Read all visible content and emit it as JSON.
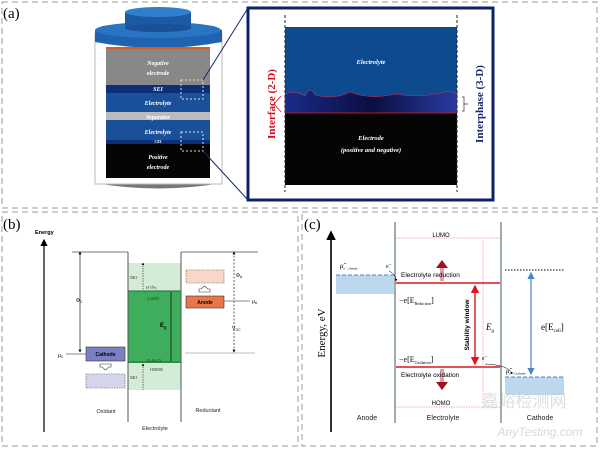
{
  "panel_a": {
    "label": "(a)",
    "battery_layers": {
      "negative_electrode_1": "Negative",
      "negative_electrode_2": "electrode",
      "sei": "SEI",
      "electrolyte_top": "Electrolyte",
      "separator": "Separator",
      "electrolyte_bottom": "Electrolyte",
      "cei": "CEI",
      "positive_electrode_1": "Positive",
      "positive_electrode_2": "electrode"
    },
    "zoom": {
      "electrolyte": "Electrolyte",
      "electrode_1": "Electrode",
      "electrode_2": "(positive and negative)",
      "interface": "Interface (2-D)",
      "interphase": "Interphase (3-D)"
    },
    "colors": {
      "cap": "#1f63b0",
      "sei": "#0d2f78",
      "electrolyte": "#1a4f9a",
      "interface": "#d01020",
      "interphase": "#1a2a6a"
    }
  },
  "panel_b": {
    "label": "(b)",
    "energy": "Energy",
    "phi_c": "Φ",
    "phi_c_sub": "C",
    "mu_c": "μ",
    "mu_c_sub": "C",
    "phi_a": "Φ",
    "phi_a_sub": "A",
    "mu_a": "μ",
    "mu_a_sub": "A",
    "voc": "V",
    "voc_sub": "OC",
    "sei_top": "SEI",
    "sei_bottom": "SEI",
    "h_couple": "H⁺/H₂",
    "lumo": "LUMO",
    "eg": "E",
    "eg_sub": "g",
    "o_couple": "O₂/H₂O",
    "homo": "HOMO",
    "cathode": "Cathode",
    "anode": "Anode",
    "oxidant": "Oxidant",
    "electrolyte": "Electrolyte",
    "reductant": "Reductant",
    "colors": {
      "cathode": "#7b7fc4",
      "anode": "#e8784a",
      "gap": "#3fae5c",
      "sei": "#d3ecd6"
    }
  },
  "panel_c": {
    "label": "(c)",
    "energy": "Energy, eV",
    "lumo": "LUMO",
    "homo": "HOMO",
    "electrolyte_reduction": "Electrolyte reduction",
    "electrolyte_oxidation": "Electrolyte oxidation",
    "e_reduction_prefix": "−e[E",
    "e_reduction_sub": "Reduction",
    "e_oxidation_prefix": "−e[E",
    "e_oxidation_sub": "Oxidation",
    "bracket_close": "]",
    "stability_window": "Stability window",
    "eg": "E",
    "eg_sub": "g",
    "ecell_prefix": "e[E",
    "ecell_sub": "cell",
    "mu_anode": "μ̃",
    "mu_anode_sub": "e⁻, Anode",
    "mu_cathode": "μ̃",
    "mu_cathode_sub": "e⁻,Cathode",
    "electron": "e⁻",
    "anode": "Anode",
    "electrolyte": "Electrolyte",
    "cathode": "Cathode",
    "colors": {
      "red": "#e0141e",
      "blue": "#4a86c8",
      "block": "#bcd8ee"
    }
  },
  "watermark": {
    "cn": "嘉峪检测网",
    "en": "AnyTesting.com"
  }
}
